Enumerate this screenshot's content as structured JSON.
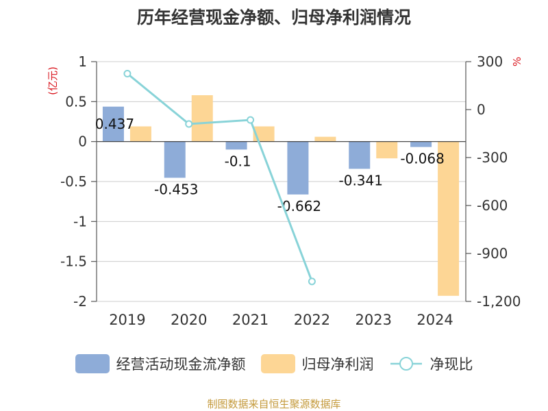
{
  "title": "历年经营现金净额、归母净利润情况",
  "source": "制图数据来自恒生聚源数据库",
  "colors": {
    "ocf": "#8eacd8",
    "profit": "#fdd695",
    "ratio": "#88d3d8",
    "unit_label": "#d9141c",
    "axis": "#555555",
    "grid": "#cccccc"
  },
  "chart_data": {
    "type": "bar",
    "categories": [
      "2019",
      "2020",
      "2021",
      "2022",
      "2023",
      "2024"
    ],
    "series": [
      {
        "name": "经营活动现金流净额",
        "type": "bar",
        "axis": "left",
        "values": [
          0.437,
          -0.453,
          -0.1,
          -0.662,
          -0.341,
          -0.068
        ],
        "data_labels": [
          "0.437",
          "-0.453",
          "-0.1",
          "-0.662",
          "-0.341",
          "-0.068"
        ]
      },
      {
        "name": "归母净利润",
        "type": "bar",
        "axis": "left",
        "values": [
          0.19,
          0.58,
          0.19,
          0.06,
          -0.21,
          -1.93
        ]
      },
      {
        "name": "净现比",
        "type": "line",
        "axis": "right",
        "values": [
          225,
          -90,
          -65,
          -1075,
          null,
          null
        ]
      }
    ],
    "y_left": {
      "unit": "(亿元)",
      "ylim": [
        -2,
        1
      ],
      "ticks": [
        1,
        0.5,
        0,
        -0.5,
        -1,
        -1.5,
        -2
      ],
      "tick_labels": [
        "1",
        "0.5",
        "0",
        "-0.5",
        "-1",
        "-1.5",
        "-2"
      ]
    },
    "y_right": {
      "unit": "%",
      "ylim": [
        -1200,
        300
      ],
      "ticks": [
        300,
        0,
        -300,
        -600,
        -900,
        -1200
      ],
      "tick_labels": [
        "300",
        "0",
        "-300",
        "-600",
        "-900",
        "-1,200"
      ]
    },
    "grid": true,
    "legend_position": "bottom"
  }
}
